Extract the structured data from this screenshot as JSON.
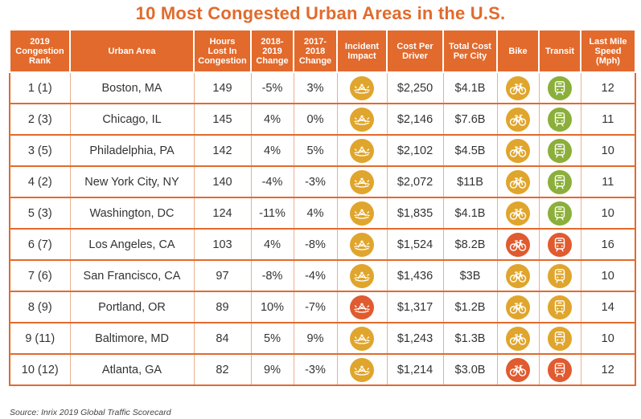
{
  "title": "10 Most Congested Urban Areas in the U.S.",
  "source": "Source: Inrix 2019 Global Traffic Scorecard",
  "colors": {
    "header": "#E26A2C",
    "gold": "#E0A52C",
    "red": "#E05B2F",
    "green": "#8BAF3A"
  },
  "chart_data": {
    "type": "table",
    "title": "10 Most Congested Urban Areas in the U.S.",
    "columns": [
      "2019 Congestion Rank",
      "Urban Area",
      "Hours Lost In Congestion",
      "2018-2019 Change",
      "2017-2018 Change",
      "Incident Impact",
      "Cost Per Driver",
      "Total Cost Per City",
      "Bike",
      "Transit",
      "Last Mile Speed (Mph)"
    ],
    "rows": [
      {
        "rank": "1 (1)",
        "area": "Boston, MA",
        "hours": "149",
        "c1819": "-5%",
        "c1718": "3%",
        "incident": "gold",
        "cost": "$2,250",
        "total": "$4.1B",
        "bike": "gold",
        "transit": "green",
        "speed": "12"
      },
      {
        "rank": "2 (3)",
        "area": "Chicago, IL",
        "hours": "145",
        "c1819": "4%",
        "c1718": "0%",
        "incident": "gold",
        "cost": "$2,146",
        "total": "$7.6B",
        "bike": "gold",
        "transit": "green",
        "speed": "11"
      },
      {
        "rank": "3 (5)",
        "area": "Philadelphia, PA",
        "hours": "142",
        "c1819": "4%",
        "c1718": "5%",
        "incident": "gold",
        "cost": "$2,102",
        "total": "$4.5B",
        "bike": "gold",
        "transit": "green",
        "speed": "10"
      },
      {
        "rank": "4 (2)",
        "area": "New York City, NY",
        "hours": "140",
        "c1819": "-4%",
        "c1718": "-3%",
        "incident": "gold",
        "cost": "$2,072",
        "total": "$11B",
        "bike": "gold",
        "transit": "green",
        "speed": "11"
      },
      {
        "rank": "5 (3)",
        "area": "Washington, DC",
        "hours": "124",
        "c1819": "-11%",
        "c1718": "4%",
        "incident": "gold",
        "cost": "$1,835",
        "total": "$4.1B",
        "bike": "gold",
        "transit": "green",
        "speed": "10"
      },
      {
        "rank": "6 (7)",
        "area": "Los Angeles, CA",
        "hours": "103",
        "c1819": "4%",
        "c1718": "-8%",
        "incident": "gold",
        "cost": "$1,524",
        "total": "$8.2B",
        "bike": "red",
        "transit": "red",
        "speed": "16"
      },
      {
        "rank": "7 (6)",
        "area": "San Francisco, CA",
        "hours": "97",
        "c1819": "-8%",
        "c1718": "-4%",
        "incident": "gold",
        "cost": "$1,436",
        "total": "$3B",
        "bike": "gold",
        "transit": "gold",
        "speed": "10"
      },
      {
        "rank": "8 (9)",
        "area": "Portland, OR",
        "hours": "89",
        "c1819": "10%",
        "c1718": "-7%",
        "incident": "red",
        "cost": "$1,317",
        "total": "$1.2B",
        "bike": "gold",
        "transit": "gold",
        "speed": "14"
      },
      {
        "rank": "9 (11)",
        "area": "Baltimore, MD",
        "hours": "84",
        "c1819": "5%",
        "c1718": "9%",
        "incident": "gold",
        "cost": "$1,243",
        "total": "$1.3B",
        "bike": "gold",
        "transit": "gold",
        "speed": "10"
      },
      {
        "rank": "10 (12)",
        "area": "Atlanta, GA",
        "hours": "82",
        "c1819": "9%",
        "c1718": "-3%",
        "incident": "gold",
        "cost": "$1,214",
        "total": "$3.0B",
        "bike": "red",
        "transit": "red",
        "speed": "12"
      }
    ]
  }
}
